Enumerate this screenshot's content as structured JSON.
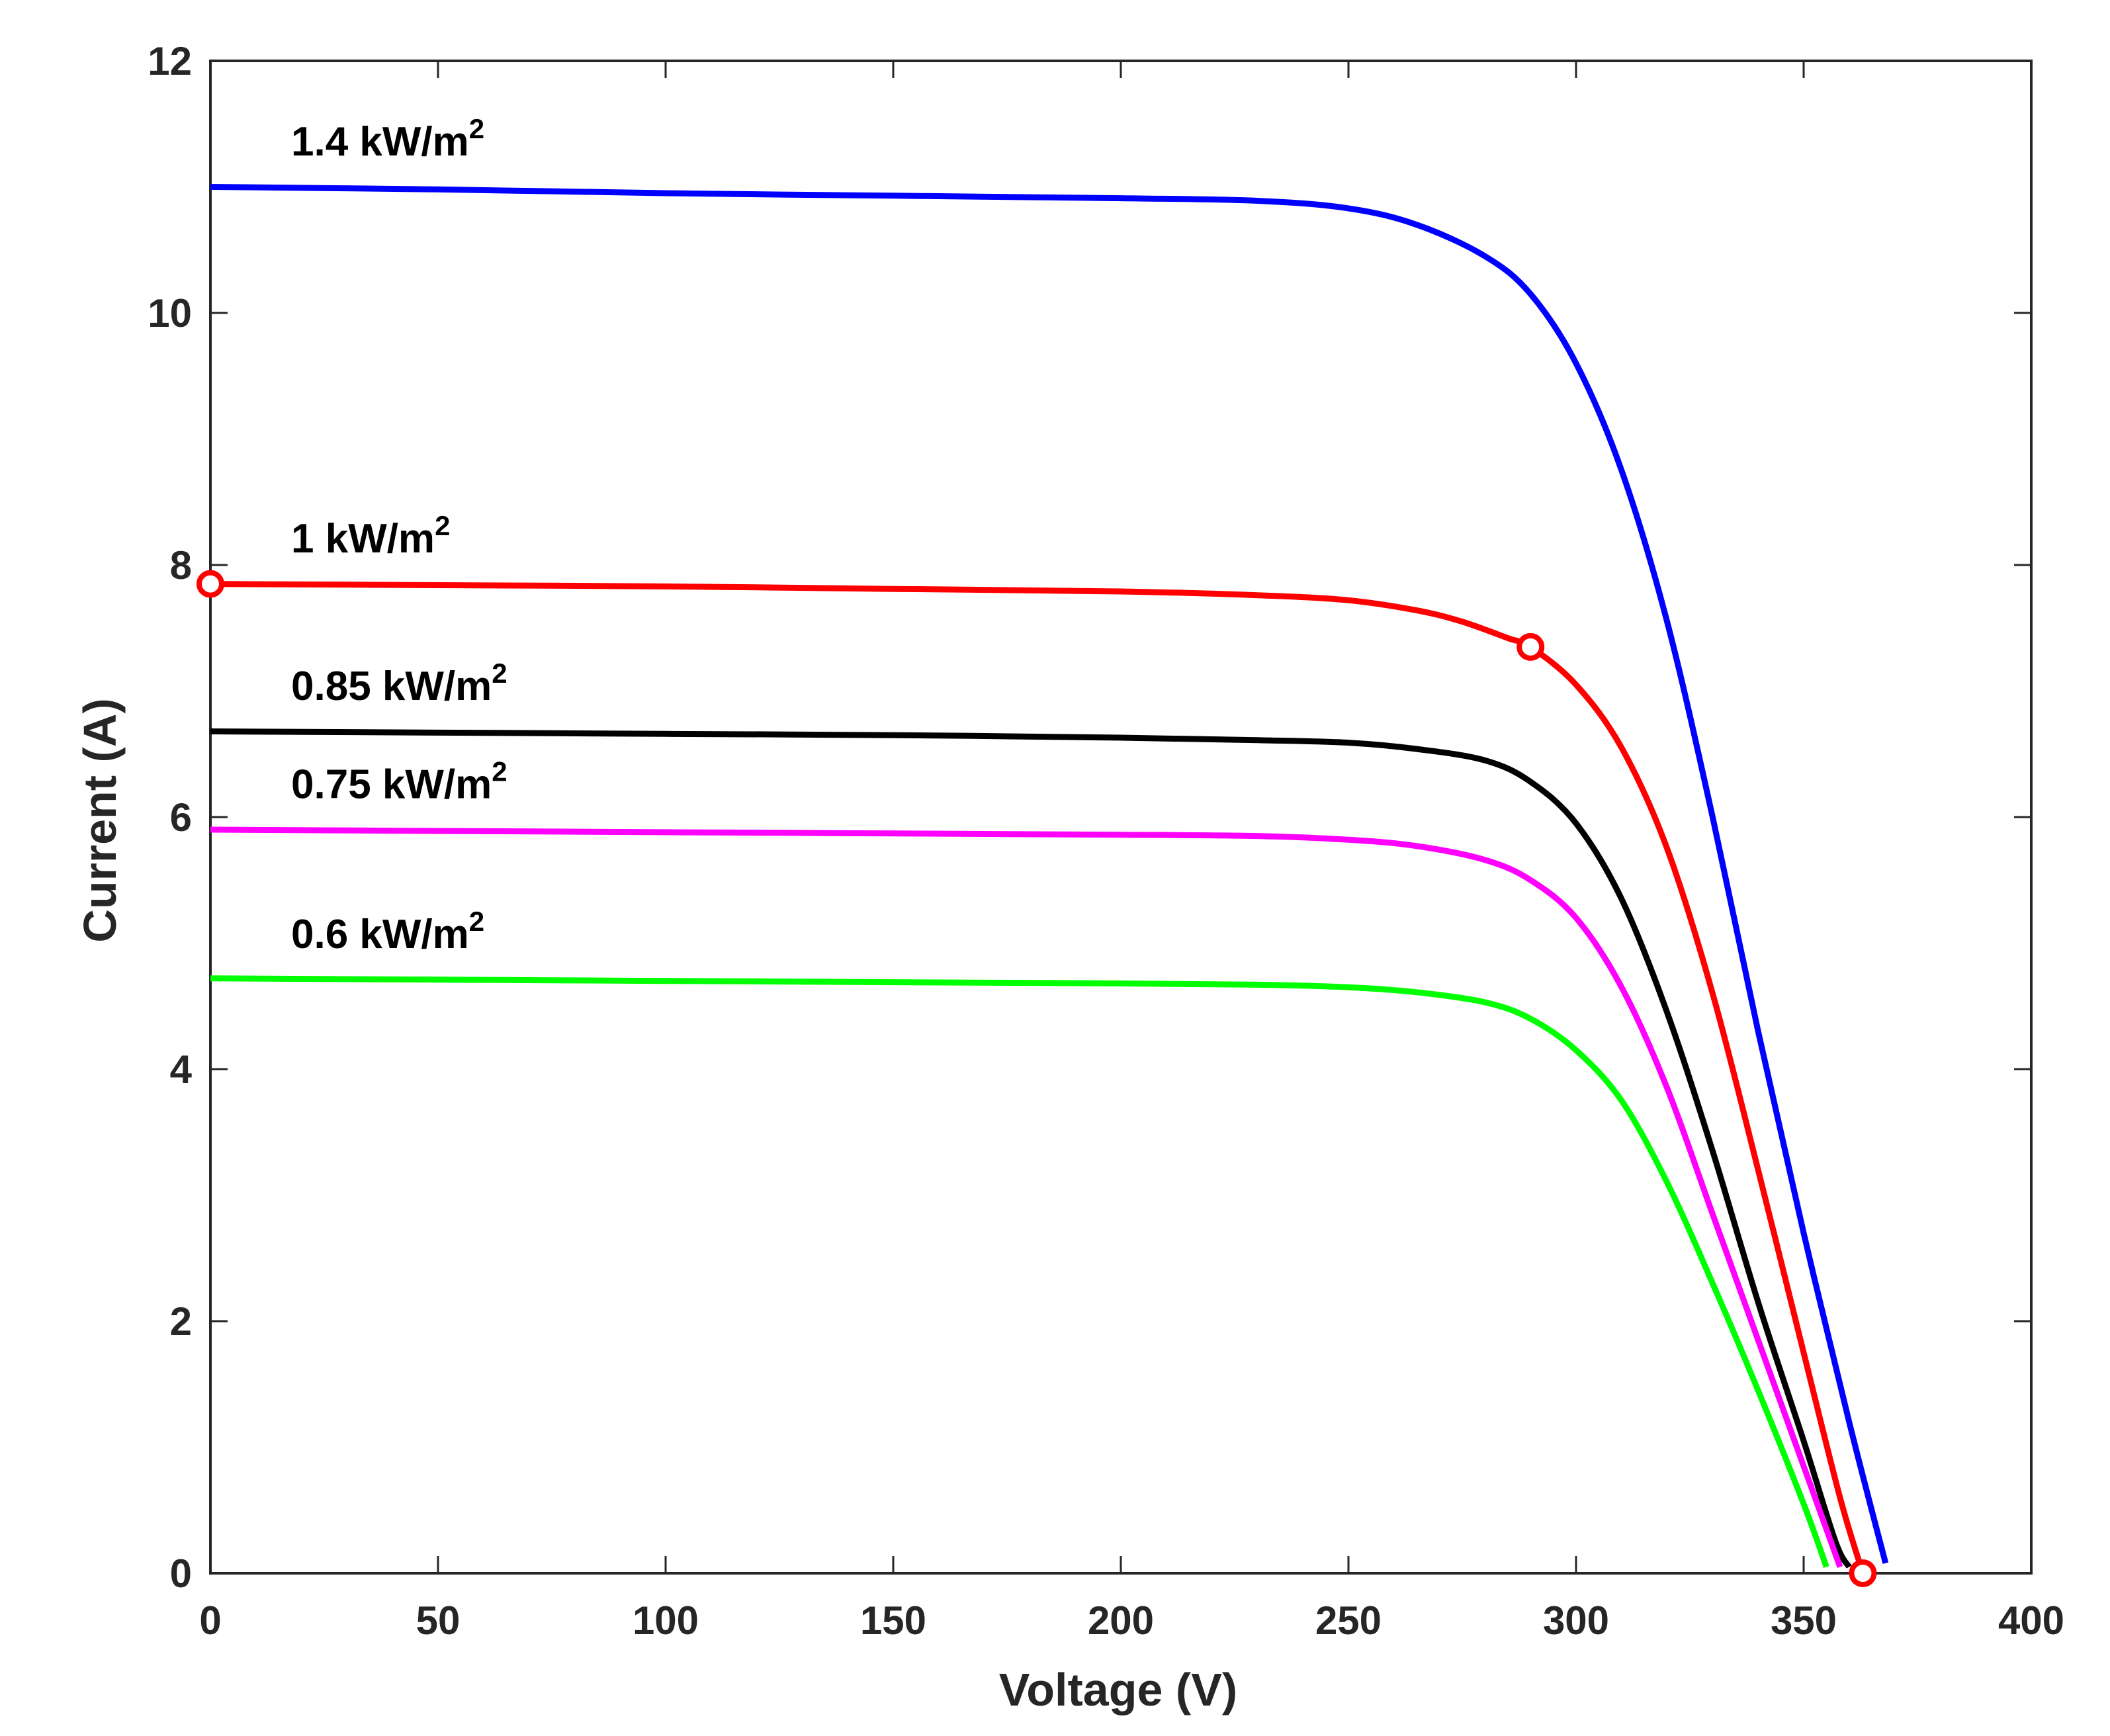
{
  "chart_data": {
    "type": "line",
    "title": "",
    "xlabel": "Voltage (V)",
    "ylabel": "Current (A)",
    "xlim": [
      0,
      400
    ],
    "ylim": [
      0,
      12
    ],
    "xticks": [
      0,
      50,
      100,
      150,
      200,
      250,
      300,
      350,
      400
    ],
    "yticks": [
      0,
      2,
      4,
      6,
      8,
      10,
      12
    ],
    "grid": false,
    "legend": "none",
    "series": [
      {
        "name": "1.4 kW/m2",
        "label_text": "1.4 kW/m",
        "label_sup": "2",
        "label_at": [
          25,
          11.25
        ],
        "color": "#0000ff",
        "points": [
          [
            0,
            11.0
          ],
          [
            50,
            10.98
          ],
          [
            100,
            10.95
          ],
          [
            150,
            10.93
          ],
          [
            200,
            10.91
          ],
          [
            230,
            10.89
          ],
          [
            250,
            10.83
          ],
          [
            265,
            10.7
          ],
          [
            280,
            10.45
          ],
          [
            290,
            10.15
          ],
          [
            300,
            9.6
          ],
          [
            310,
            8.75
          ],
          [
            320,
            7.55
          ],
          [
            330,
            6.0
          ],
          [
            340,
            4.3
          ],
          [
            350,
            2.7
          ],
          [
            360,
            1.2
          ],
          [
            368,
            0.08
          ]
        ]
      },
      {
        "name": "1 kW/m2",
        "label_text": "1 kW/m",
        "label_sup": "2",
        "label_at": [
          25,
          8.1
        ],
        "color": "#ff0000",
        "points": [
          [
            0,
            7.85
          ],
          [
            50,
            7.84
          ],
          [
            100,
            7.83
          ],
          [
            150,
            7.81
          ],
          [
            200,
            7.79
          ],
          [
            230,
            7.76
          ],
          [
            250,
            7.72
          ],
          [
            265,
            7.64
          ],
          [
            275,
            7.55
          ],
          [
            285,
            7.42
          ],
          [
            290,
            7.35
          ],
          [
            300,
            7.05
          ],
          [
            310,
            6.55
          ],
          [
            320,
            5.75
          ],
          [
            330,
            4.6
          ],
          [
            340,
            3.2
          ],
          [
            350,
            1.75
          ],
          [
            358,
            0.6
          ],
          [
            363,
            0.0
          ]
        ]
      },
      {
        "name": "0.85 kW/m2",
        "label_text": "0.85 kW/m",
        "label_sup": "2",
        "label_at": [
          25,
          6.93
        ],
        "color": "#000000",
        "points": [
          [
            0,
            6.68
          ],
          [
            50,
            6.67
          ],
          [
            100,
            6.66
          ],
          [
            150,
            6.65
          ],
          [
            200,
            6.63
          ],
          [
            230,
            6.61
          ],
          [
            250,
            6.59
          ],
          [
            265,
            6.54
          ],
          [
            280,
            6.45
          ],
          [
            290,
            6.28
          ],
          [
            300,
            5.95
          ],
          [
            310,
            5.35
          ],
          [
            320,
            4.45
          ],
          [
            330,
            3.35
          ],
          [
            340,
            2.15
          ],
          [
            350,
            1.05
          ],
          [
            357,
            0.25
          ],
          [
            360,
            0.05
          ]
        ]
      },
      {
        "name": "0.75 kW/m2",
        "label_text": "0.75 kW/m",
        "label_sup": "2",
        "label_at": [
          25,
          6.15
        ],
        "color": "#ff00ff",
        "points": [
          [
            0,
            5.9
          ],
          [
            50,
            5.89
          ],
          [
            100,
            5.88
          ],
          [
            150,
            5.87
          ],
          [
            200,
            5.86
          ],
          [
            230,
            5.85
          ],
          [
            250,
            5.82
          ],
          [
            265,
            5.77
          ],
          [
            280,
            5.66
          ],
          [
            290,
            5.5
          ],
          [
            300,
            5.2
          ],
          [
            310,
            4.65
          ],
          [
            320,
            3.85
          ],
          [
            330,
            2.85
          ],
          [
            340,
            1.85
          ],
          [
            350,
            0.85
          ],
          [
            355,
            0.35
          ],
          [
            358,
            0.05
          ]
        ]
      },
      {
        "name": "0.6 kW/m2",
        "label_text": "0.6 kW/m",
        "label_sup": "2",
        "label_at": [
          25,
          4.96
        ],
        "color": "#00ff00",
        "points": [
          [
            0,
            4.72
          ],
          [
            50,
            4.71
          ],
          [
            100,
            4.7
          ],
          [
            150,
            4.69
          ],
          [
            200,
            4.68
          ],
          [
            230,
            4.67
          ],
          [
            250,
            4.65
          ],
          [
            265,
            4.61
          ],
          [
            280,
            4.53
          ],
          [
            290,
            4.4
          ],
          [
            300,
            4.15
          ],
          [
            310,
            3.75
          ],
          [
            320,
            3.1
          ],
          [
            330,
            2.3
          ],
          [
            340,
            1.45
          ],
          [
            350,
            0.55
          ],
          [
            355,
            0.05
          ]
        ]
      }
    ],
    "markers": [
      {
        "name": "short-circuit point",
        "x": 0,
        "y": 7.85,
        "color": "#ff0000"
      },
      {
        "name": "maximum power point",
        "x": 290,
        "y": 7.35,
        "color": "#ff0000"
      },
      {
        "name": "open-circuit point",
        "x": 363,
        "y": 0,
        "color": "#ff0000"
      }
    ]
  }
}
